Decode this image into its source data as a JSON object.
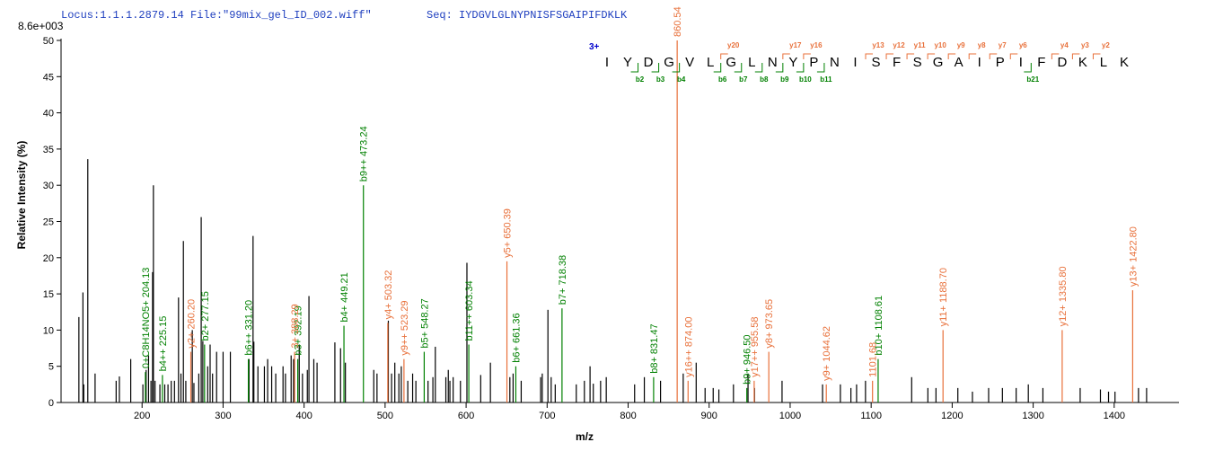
{
  "chart_data": {
    "type": "spectrum",
    "header": "Locus:1.1.1.2879.14 File:\"99mix_gel_ID_002.wiff\"",
    "sequence_text": "Seq: IYDGVLGLNYPNISFSGAIPIFDKLK",
    "scale_label": "8.6e+003",
    "x_label": "m/z",
    "y_label": "Relative  Intensity (%)",
    "xlim": [
      100,
      1480
    ],
    "ylim": [
      0,
      50
    ],
    "xticks": [
      200,
      300,
      400,
      500,
      600,
      700,
      800,
      900,
      1000,
      1100,
      1200,
      1300,
      1400
    ],
    "yticks": [
      0,
      5,
      10,
      15,
      20,
      25,
      30,
      35,
      40,
      45,
      50
    ],
    "sequence": {
      "charge": "3+",
      "residues": [
        "I",
        "Y",
        "D",
        "G",
        "V",
        "L",
        "G",
        "L",
        "N",
        "Y",
        "P",
        "N",
        "I",
        "S",
        "F",
        "S",
        "G",
        "A",
        "I",
        "P",
        "I",
        "F",
        "D",
        "K",
        "L",
        "K"
      ],
      "y_ions": [
        "y20",
        "y17",
        "y16",
        "y13",
        "y12",
        "y11",
        "y10",
        "y9",
        "y8",
        "y7",
        "y6",
        "y4",
        "y3",
        "y2"
      ],
      "b_ions": [
        "b2",
        "b3",
        "b4",
        "b6",
        "b7",
        "b8",
        "b9",
        "b10",
        "b11",
        "b21"
      ]
    },
    "series": [
      {
        "color": "#000000",
        "x": [
          122,
          127,
          128,
          133,
          142,
          168,
          172,
          186,
          201,
          205,
          208,
          211,
          213,
          214,
          216,
          222,
          228,
          232,
          236,
          240,
          245,
          248,
          251,
          254,
          262,
          264,
          270,
          273,
          275,
          281,
          284,
          287,
          292,
          300,
          309,
          332,
          337,
          338,
          343,
          351,
          355,
          360,
          365,
          374,
          377,
          384,
          387,
          394,
          398,
          404,
          406,
          412,
          416,
          438,
          445,
          451,
          486,
          490,
          504,
          508,
          512,
          517,
          520,
          528,
          534,
          538,
          553,
          559,
          562,
          575,
          578,
          580,
          584,
          593,
          601,
          618,
          630,
          654,
          658,
          668,
          692,
          694,
          701,
          705,
          710,
          736,
          746,
          753,
          757,
          766,
          773,
          808,
          820,
          840,
          868,
          884,
          895,
          905,
          912,
          930,
          948,
          956,
          990,
          1040,
          1062,
          1075,
          1082,
          1093,
          1150,
          1170,
          1180,
          1207,
          1225,
          1245,
          1262,
          1279,
          1294,
          1312,
          1358,
          1383,
          1393,
          1401,
          1430,
          1440
        ],
        "values": [
          11.8,
          15.2,
          2.5,
          33.6,
          4,
          3,
          3.6,
          6,
          2.5,
          4.5,
          6.5,
          3,
          18,
          30,
          3,
          2.5,
          2.5,
          2.5,
          3,
          3,
          14.5,
          4,
          22.3,
          3,
          10,
          2.7,
          4,
          25.6,
          8.5,
          5,
          8,
          4,
          7,
          7,
          7,
          6,
          23,
          8.4,
          5,
          5,
          6,
          5,
          4,
          5,
          4,
          6.5,
          6,
          8,
          4,
          4.5,
          14.7,
          6,
          5.5,
          8.3,
          7.5,
          5.5,
          4.5,
          4,
          11.3,
          4,
          5.5,
          4,
          5,
          3,
          4,
          3,
          3,
          3.5,
          7.7,
          3.5,
          4.5,
          3,
          3.5,
          3,
          19.3,
          3.8,
          5.5,
          3.5,
          4,
          3,
          3.5,
          4,
          12.8,
          3.5,
          2.5,
          2.5,
          3,
          5,
          2.6,
          3,
          3.5,
          2.5,
          3.5,
          3,
          4,
          5.5,
          2,
          2,
          1.8,
          2.5,
          4,
          2,
          3,
          2.5,
          2.5,
          2,
          2.5,
          3,
          3.5,
          2,
          2,
          2,
          1.5,
          2,
          2,
          2,
          2.5,
          2,
          2,
          1.8,
          1.5,
          1.5,
          2,
          2
        ]
      },
      {
        "color": "#008000",
        "x": [
          204.13,
          225.15,
          277.15,
          331.2,
          392.19,
          449.21,
          473.24,
          548.27,
          603.34,
          661.36,
          718.38,
          831.47,
          946.5,
          1108.61
        ],
        "values": [
          4.2,
          3.8,
          8,
          6,
          6,
          10.6,
          30,
          7,
          8,
          5,
          13,
          3.5,
          2,
          6
        ],
        "labels": [
          "0+C8H14NO5+ 204.13",
          "b4++ 225.15",
          "b2+ 277.15",
          "b6++ 331.20",
          "b3+ 392.19",
          "b4+ 449.21",
          "b9++ 473.24",
          "b5+ 548.27",
          "b11++ 603.34",
          "b6+ 661.36",
          "b7+ 718.38",
          "b8+ 831.47",
          "b9+ 946.50",
          "b10+ 1108.61"
        ]
      },
      {
        "color": "#e8703a",
        "x": [
          260.2,
          388.29,
          503.32,
          523.29,
          650.39,
          860.54,
          874.0,
          955.58,
          973.65,
          1044.62,
          1101.68,
          1188.7,
          1335.8,
          1422.8
        ],
        "values": [
          7,
          7,
          11,
          6,
          19.5,
          50,
          3,
          3,
          7,
          2.5,
          3,
          10,
          10,
          15.5
        ],
        "labels": [
          "y2+ 260.20",
          "3+ 388.29",
          "y4+ 503.32",
          "y9++ 523.29",
          "y5+ 650.39",
          "860.54",
          "y16++ 874.00",
          "y17++ 955.58",
          "y8+ 973.65",
          "y9+ 1044.62",
          "1101.68",
          "y11+ 1188.70",
          "y12+ 1335.80",
          "y13+ 1422.80"
        ]
      }
    ]
  }
}
